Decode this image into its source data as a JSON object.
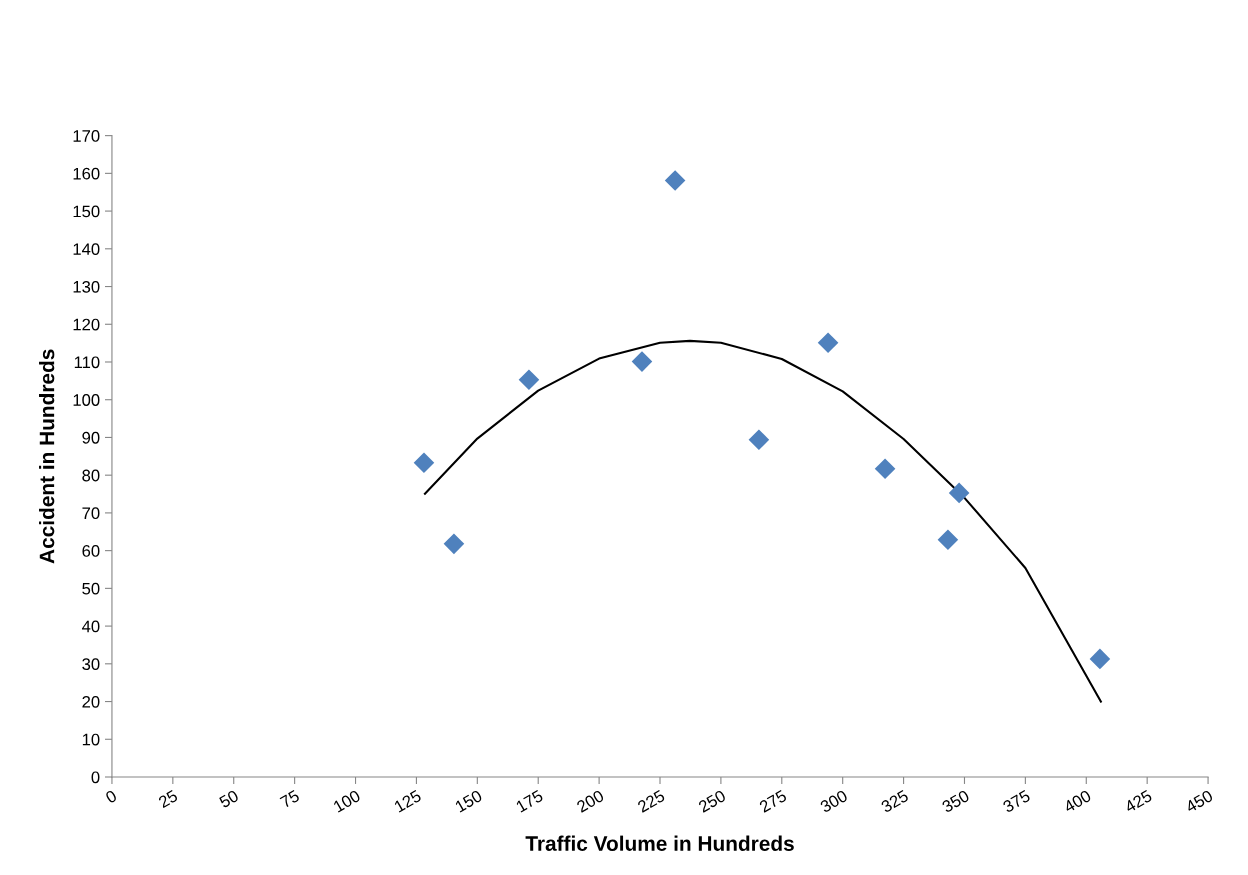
{
  "chart_data": {
    "type": "scatter",
    "xlabel": "Traffic Volume in Hundreds",
    "ylabel": "Accident in Hundreds",
    "xlim": [
      0,
      450
    ],
    "xticks": [
      0,
      25,
      50,
      75,
      100,
      125,
      150,
      175,
      200,
      225,
      250,
      275,
      300,
      325,
      350,
      375,
      400,
      425,
      450
    ],
    "ylim": [
      0,
      170
    ],
    "yticks": [
      0,
      10,
      20,
      30,
      40,
      50,
      60,
      70,
      80,
      90,
      100,
      110,
      120,
      130,
      140,
      150,
      160,
      170
    ],
    "grid": false,
    "legend": false,
    "marker": "diamond",
    "series": [
      {
        "color": "#4f81bd",
        "x": [
          128.1,
          140.4,
          171.2,
          217.6,
          231.2,
          265.6,
          294.0,
          317.4,
          343.2,
          347.8,
          405.6
        ],
        "values": [
          83.3,
          61.8,
          105.3,
          110.1,
          158.1,
          89.4,
          115.1,
          81.7,
          62.9,
          75.3,
          31.3
        ]
      },
      {
        "type": "line",
        "color": "#000000",
        "marker": "none",
        "line_style": "solid",
        "x": [
          128.5,
          150,
          175,
          200,
          225,
          237.3,
          250,
          275,
          300,
          325,
          350,
          375,
          406
        ],
        "values": [
          75.1,
          89.7,
          102.4,
          110.9,
          115.1,
          115.6,
          115.1,
          110.8,
          102.2,
          89.6,
          74.0,
          55.4,
          20.0
        ]
      }
    ]
  }
}
